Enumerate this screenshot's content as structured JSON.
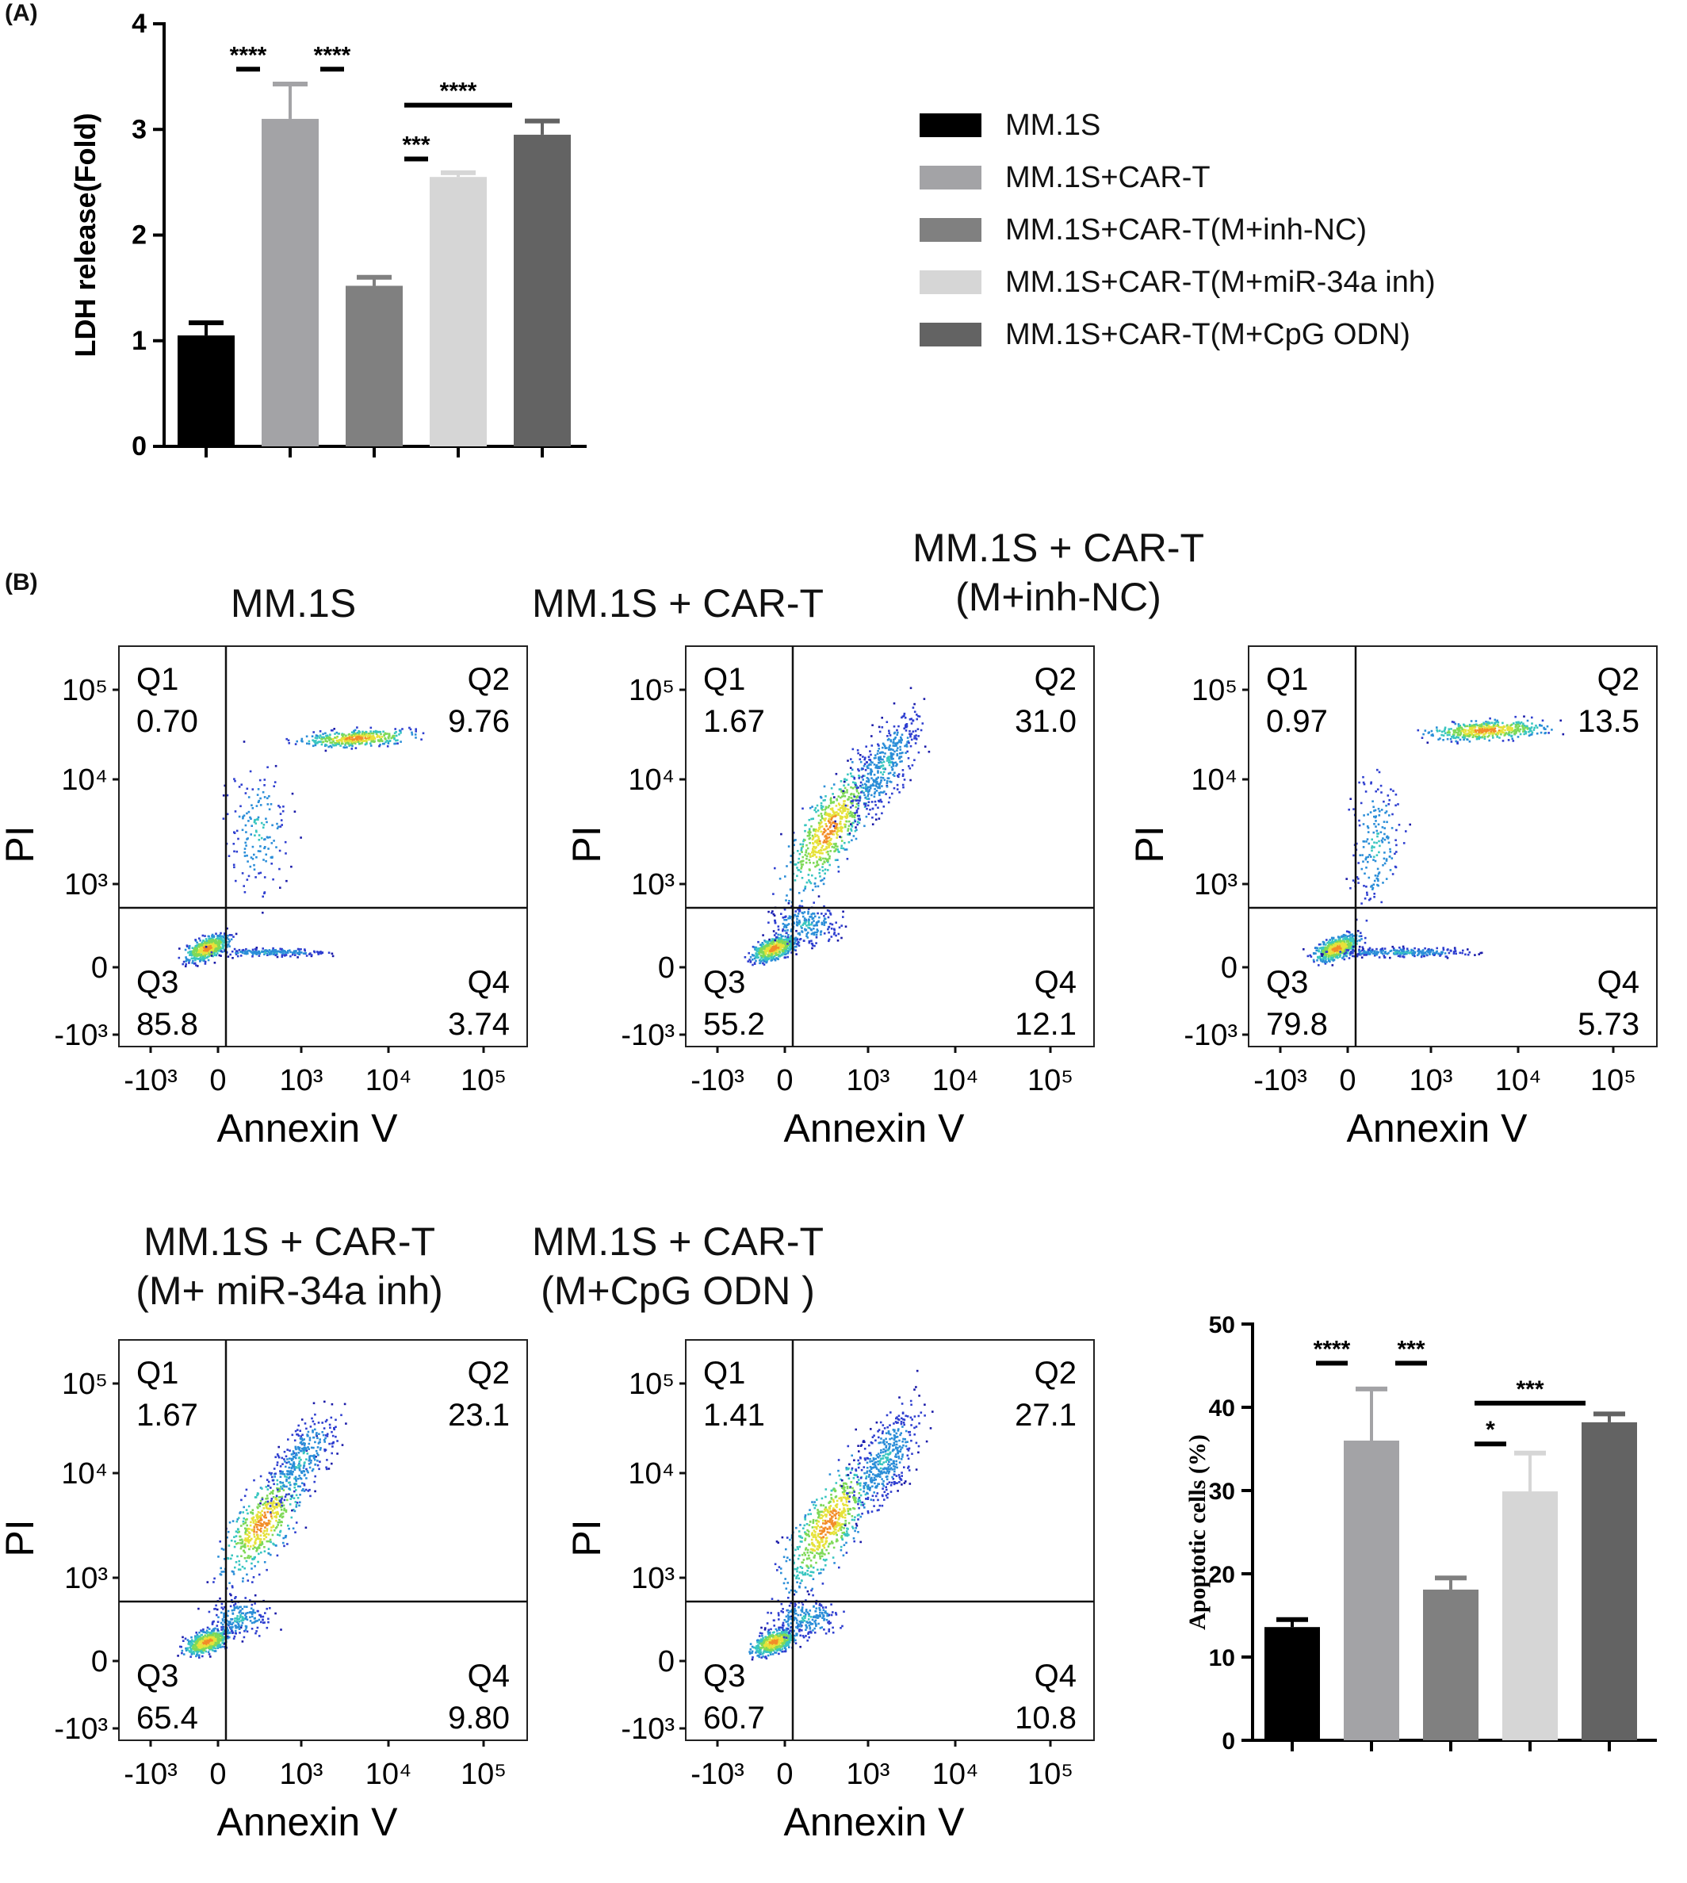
{
  "panels": {
    "a": "(A)",
    "b": "(B)"
  },
  "chart_data": [
    {
      "type": "bar",
      "panel": "(A)",
      "ylabel": "LDH release(Fold)",
      "ylim": [
        0,
        4
      ],
      "yticks": [
        "0",
        "1",
        "2",
        "3",
        "4"
      ],
      "categories": [
        "MM.1S",
        "MM.1S+CAR-T",
        "MM.1S+CAR-T(M+inh-NC)",
        "MM.1S+CAR-T(M+miR-34a inh)",
        "MM.1S+CAR-T(M+CpG ODN)"
      ],
      "values": [
        1.05,
        3.1,
        1.52,
        2.55,
        2.95
      ],
      "errors": [
        0.12,
        0.33,
        0.08,
        0.04,
        0.13
      ],
      "colors": [
        "#000000",
        "#a3a3a6",
        "#808080",
        "#d6d6d6",
        "#636363"
      ],
      "legend": [
        "MM.1S",
        "MM.1S+CAR-T",
        "MM.1S+CAR-T(M+inh-NC)",
        "MM.1S+CAR-T(M+miR-34a inh)",
        "MM.1S+CAR-T(M+CpG ODN)"
      ],
      "legend_position": "right",
      "significance": [
        {
          "from": 0,
          "to": 1,
          "label": "****",
          "y": 3.57
        },
        {
          "from": 1,
          "to": 2,
          "label": "****",
          "y": 3.57
        },
        {
          "from": 2,
          "to": 4,
          "label": "****",
          "y": 3.23
        },
        {
          "from": 2,
          "to": 3,
          "label": "***",
          "y": 2.72
        }
      ]
    },
    {
      "type": "scatter",
      "panel": "(B)",
      "plots": [
        {
          "title": [
            "MM.1S",
            ""
          ],
          "q1": "0.70",
          "q2": "9.76",
          "q3": "85.8",
          "q4": "3.74",
          "shape": "mm1s"
        },
        {
          "title": [
            "MM.1S + CAR-T",
            ""
          ],
          "q1": "1.67",
          "q2": "31.0",
          "q3": "55.2",
          "q4": "12.1",
          "shape": "diag"
        },
        {
          "title": [
            "MM.1S + CAR-T",
            "(M+inh-NC)"
          ],
          "q1": "0.97",
          "q2": "13.5",
          "q3": "79.8",
          "q4": "5.73",
          "shape": "inhnc"
        },
        {
          "title": [
            "MM.1S + CAR-T",
            "(M+ miR-34a inh)"
          ],
          "q1": "1.67",
          "q2": "23.1",
          "q3": "65.4",
          "q4": "9.80",
          "shape": "mir"
        },
        {
          "title": [
            "MM.1S + CAR-T",
            "(M+CpG ODN )"
          ],
          "q1": "1.41",
          "q2": "27.1",
          "q3": "60.7",
          "q4": "10.8",
          "shape": "diag"
        }
      ],
      "xlabel": "Annexin V",
      "ylabel": "PI",
      "quadrant_labels": [
        "Q1",
        "Q2",
        "Q3",
        "Q4"
      ],
      "xticks": [
        "-10³",
        "0",
        "10³",
        "10⁴",
        "10⁵"
      ],
      "yticks": [
        "10⁵",
        "10⁴",
        "10³",
        "0",
        "-10³"
      ]
    },
    {
      "type": "bar",
      "ylabel": "Apoptotic cells (%)",
      "ylim": [
        0,
        50
      ],
      "yticks": [
        "0",
        "10",
        "20",
        "30",
        "40",
        "50"
      ],
      "values": [
        13.6,
        36.0,
        18.1,
        29.9,
        38.2
      ],
      "errors": [
        0.9,
        6.2,
        1.4,
        4.6,
        1.0
      ],
      "colors": [
        "#000000",
        "#a3a3a6",
        "#808080",
        "#d6d6d6",
        "#636363"
      ],
      "significance": [
        {
          "from": 0,
          "to": 1,
          "label": "****",
          "y": 45.3
        },
        {
          "from": 1,
          "to": 2,
          "label": "***",
          "y": 45.3
        },
        {
          "from": 2,
          "to": 4,
          "label": "***",
          "y": 40.5
        },
        {
          "from": 2,
          "to": 3,
          "label": "*",
          "y": 35.6
        }
      ]
    }
  ]
}
